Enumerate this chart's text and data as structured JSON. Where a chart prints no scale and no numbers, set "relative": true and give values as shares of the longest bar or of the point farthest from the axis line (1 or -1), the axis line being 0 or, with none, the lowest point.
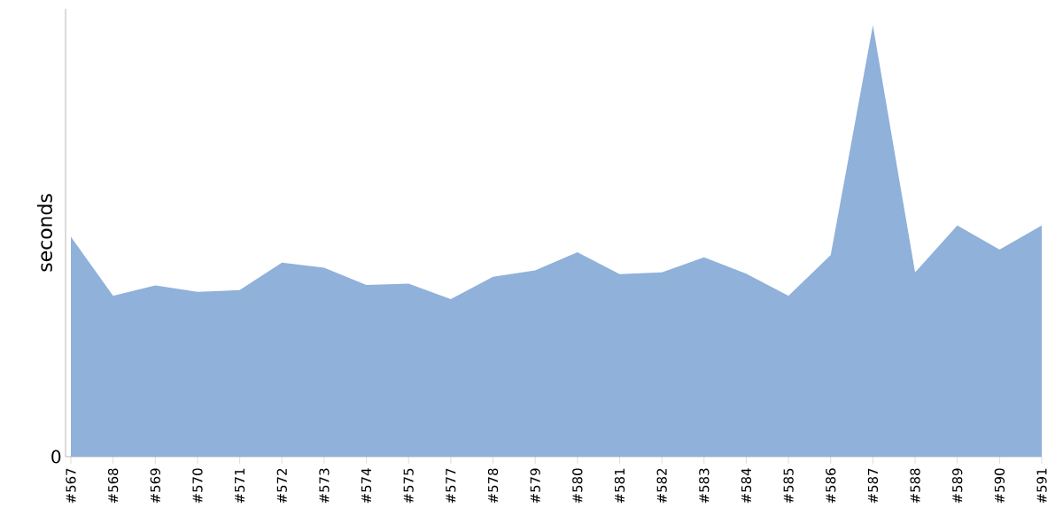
{
  "chart_data": {
    "type": "area",
    "ylabel": "seconds",
    "relative": true,
    "color": "#8fb1da",
    "annotations": [
      "0"
    ],
    "categories": [
      "#567",
      "#568",
      "#569",
      "#570",
      "#571",
      "#572",
      "#573",
      "#574",
      "#575",
      "#577",
      "#578",
      "#579",
      "#580",
      "#581",
      "#582",
      "#583",
      "#584",
      "#585",
      "#586",
      "#587",
      "#588",
      "#589",
      "#590",
      "#591"
    ],
    "values": [
      0.51,
      0.373,
      0.397,
      0.382,
      0.386,
      0.45,
      0.438,
      0.398,
      0.401,
      0.365,
      0.417,
      0.432,
      0.474,
      0.423,
      0.427,
      0.462,
      0.424,
      0.373,
      0.467,
      1,
      0.427,
      0.536,
      0.48,
      0.536
    ]
  }
}
